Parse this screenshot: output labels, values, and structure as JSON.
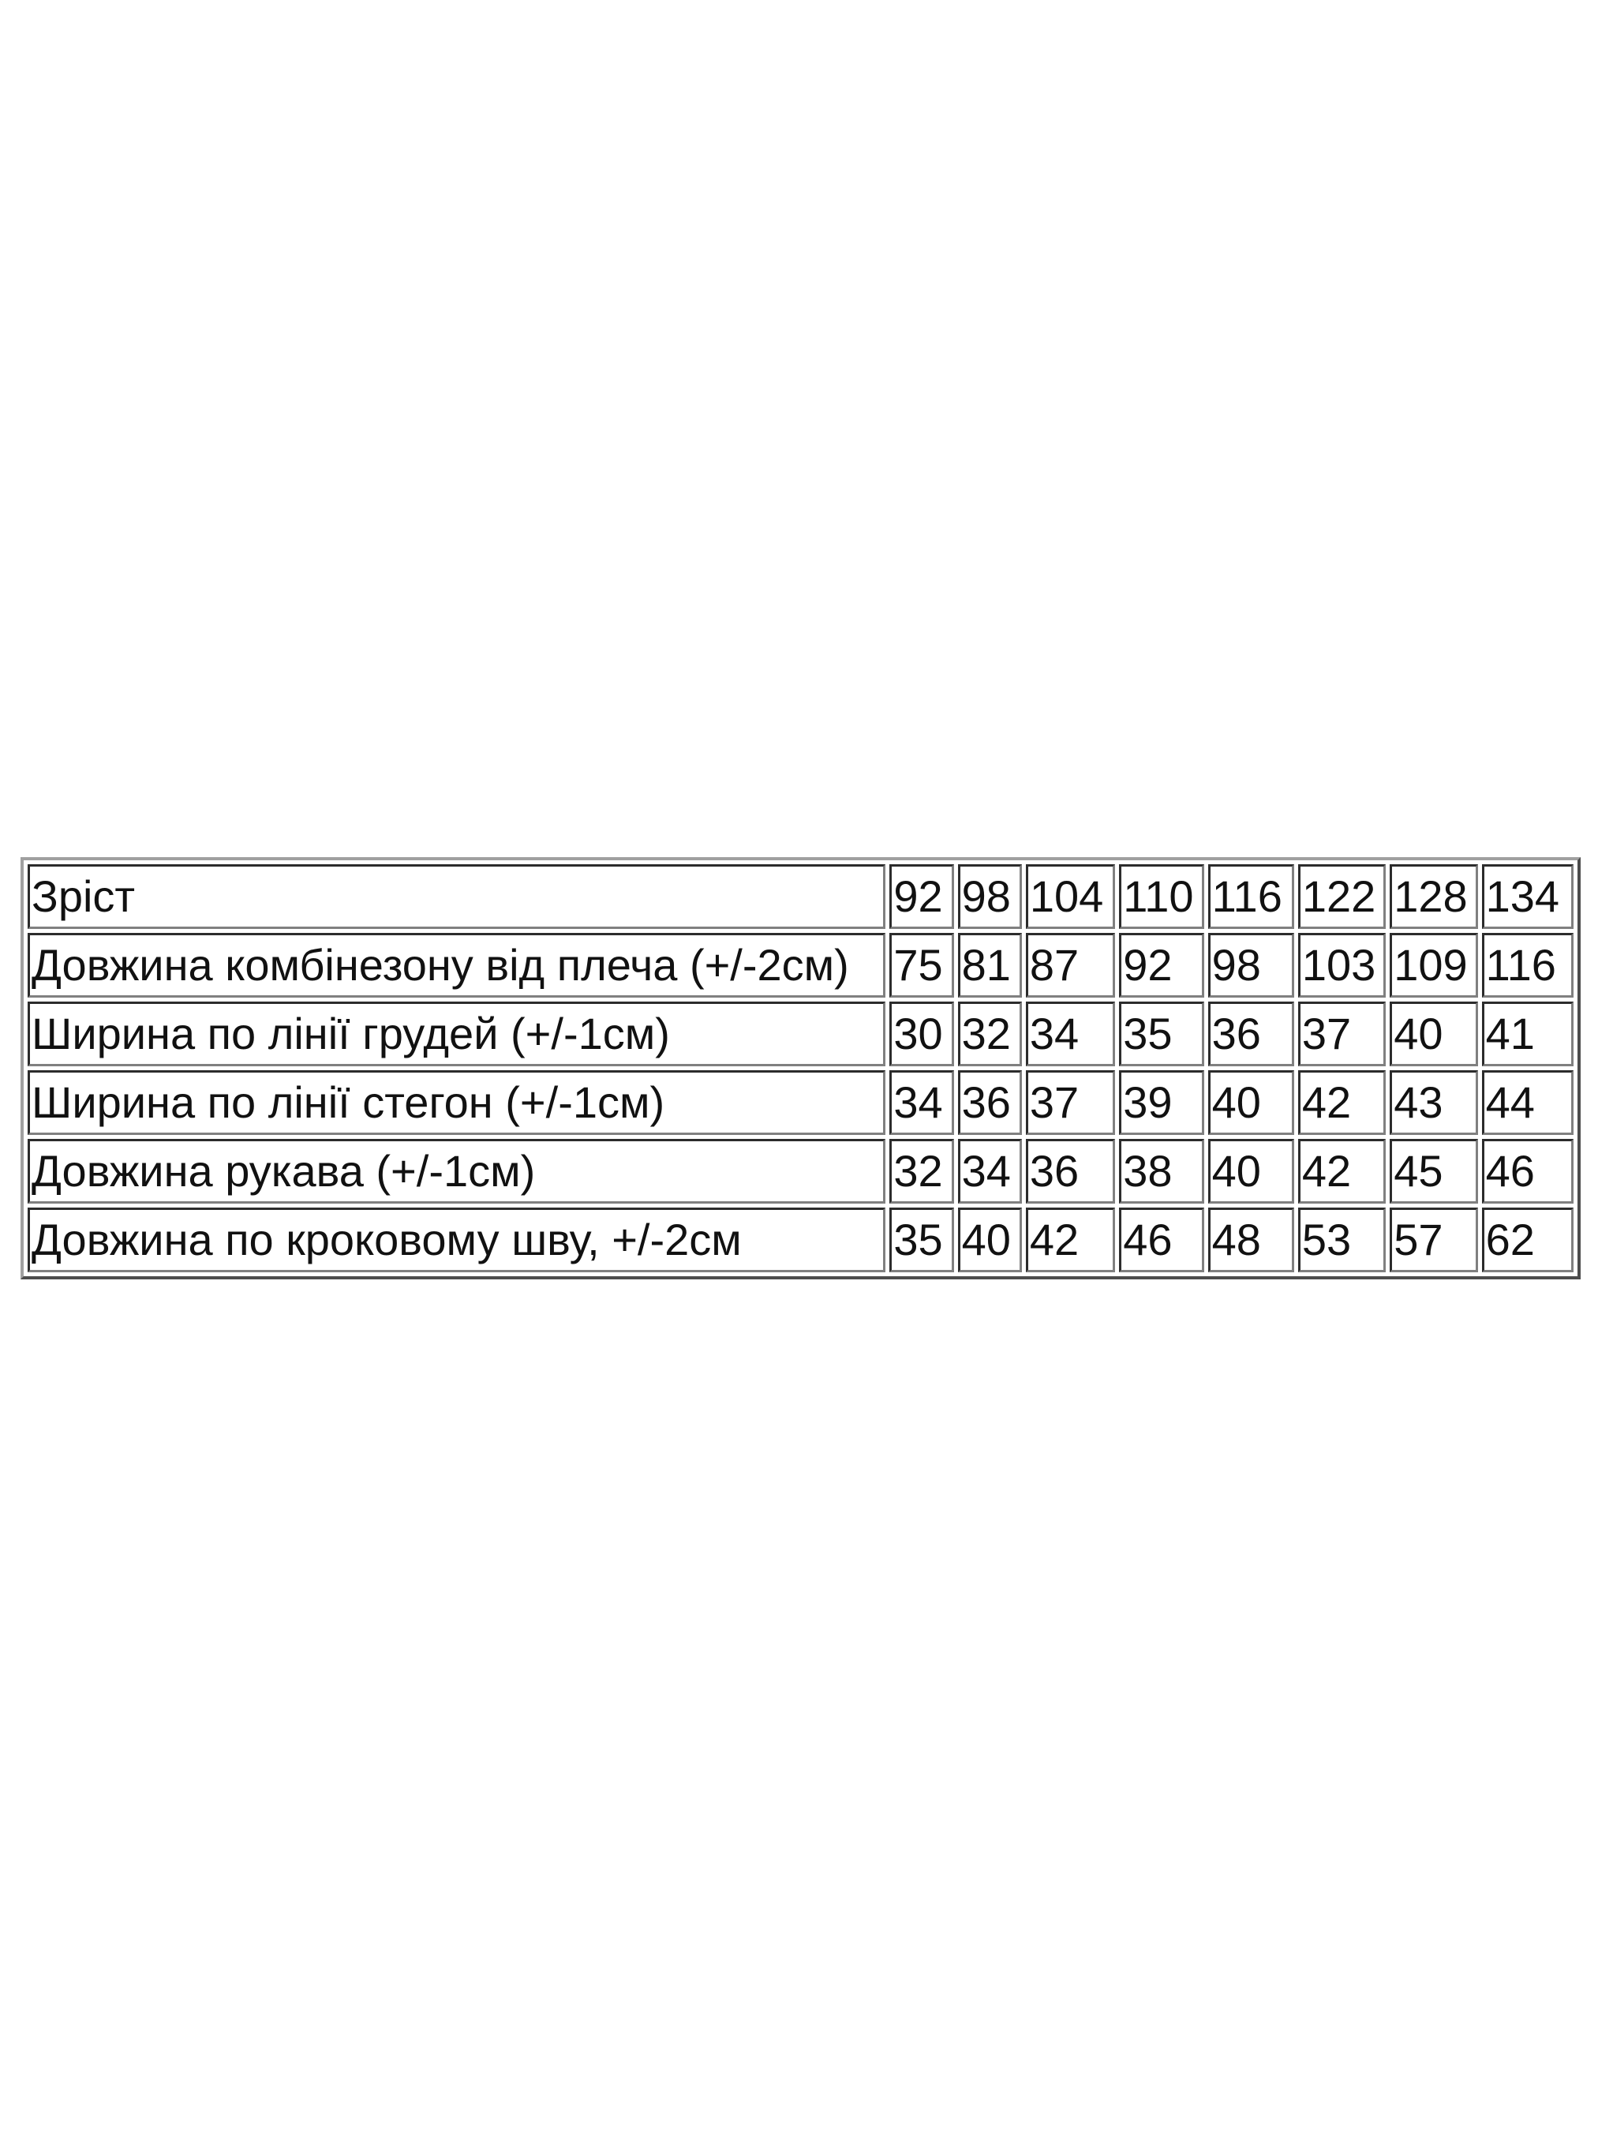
{
  "table": {
    "rows": [
      {
        "label": "Зріст",
        "values": [
          "92",
          "98",
          "104",
          "110",
          "116",
          "122",
          "128",
          "134"
        ]
      },
      {
        "label": "Довжина комбінезону від плеча (+/-2см)",
        "values": [
          "75",
          "81",
          "87",
          "92",
          "98",
          "103",
          "109",
          "116"
        ]
      },
      {
        "label": "Ширина по лінії грудей (+/-1см)",
        "values": [
          "30",
          "32",
          "34",
          "35",
          "36",
          "37",
          "40",
          "41"
        ]
      },
      {
        "label": "Ширина по лінії стегон (+/-1см)",
        "values": [
          "34",
          "36",
          "37",
          "39",
          "40",
          "42",
          "43",
          "44"
        ]
      },
      {
        "label": "Довжина рукава (+/-1см)",
        "values": [
          "32",
          "34",
          "36",
          "38",
          "40",
          "42",
          "45",
          "46"
        ]
      },
      {
        "label": "Довжина по кроковому шву, +/-2см",
        "values": [
          "35",
          "40",
          "42",
          "46",
          "48",
          "53",
          "57",
          "62"
        ]
      }
    ]
  }
}
